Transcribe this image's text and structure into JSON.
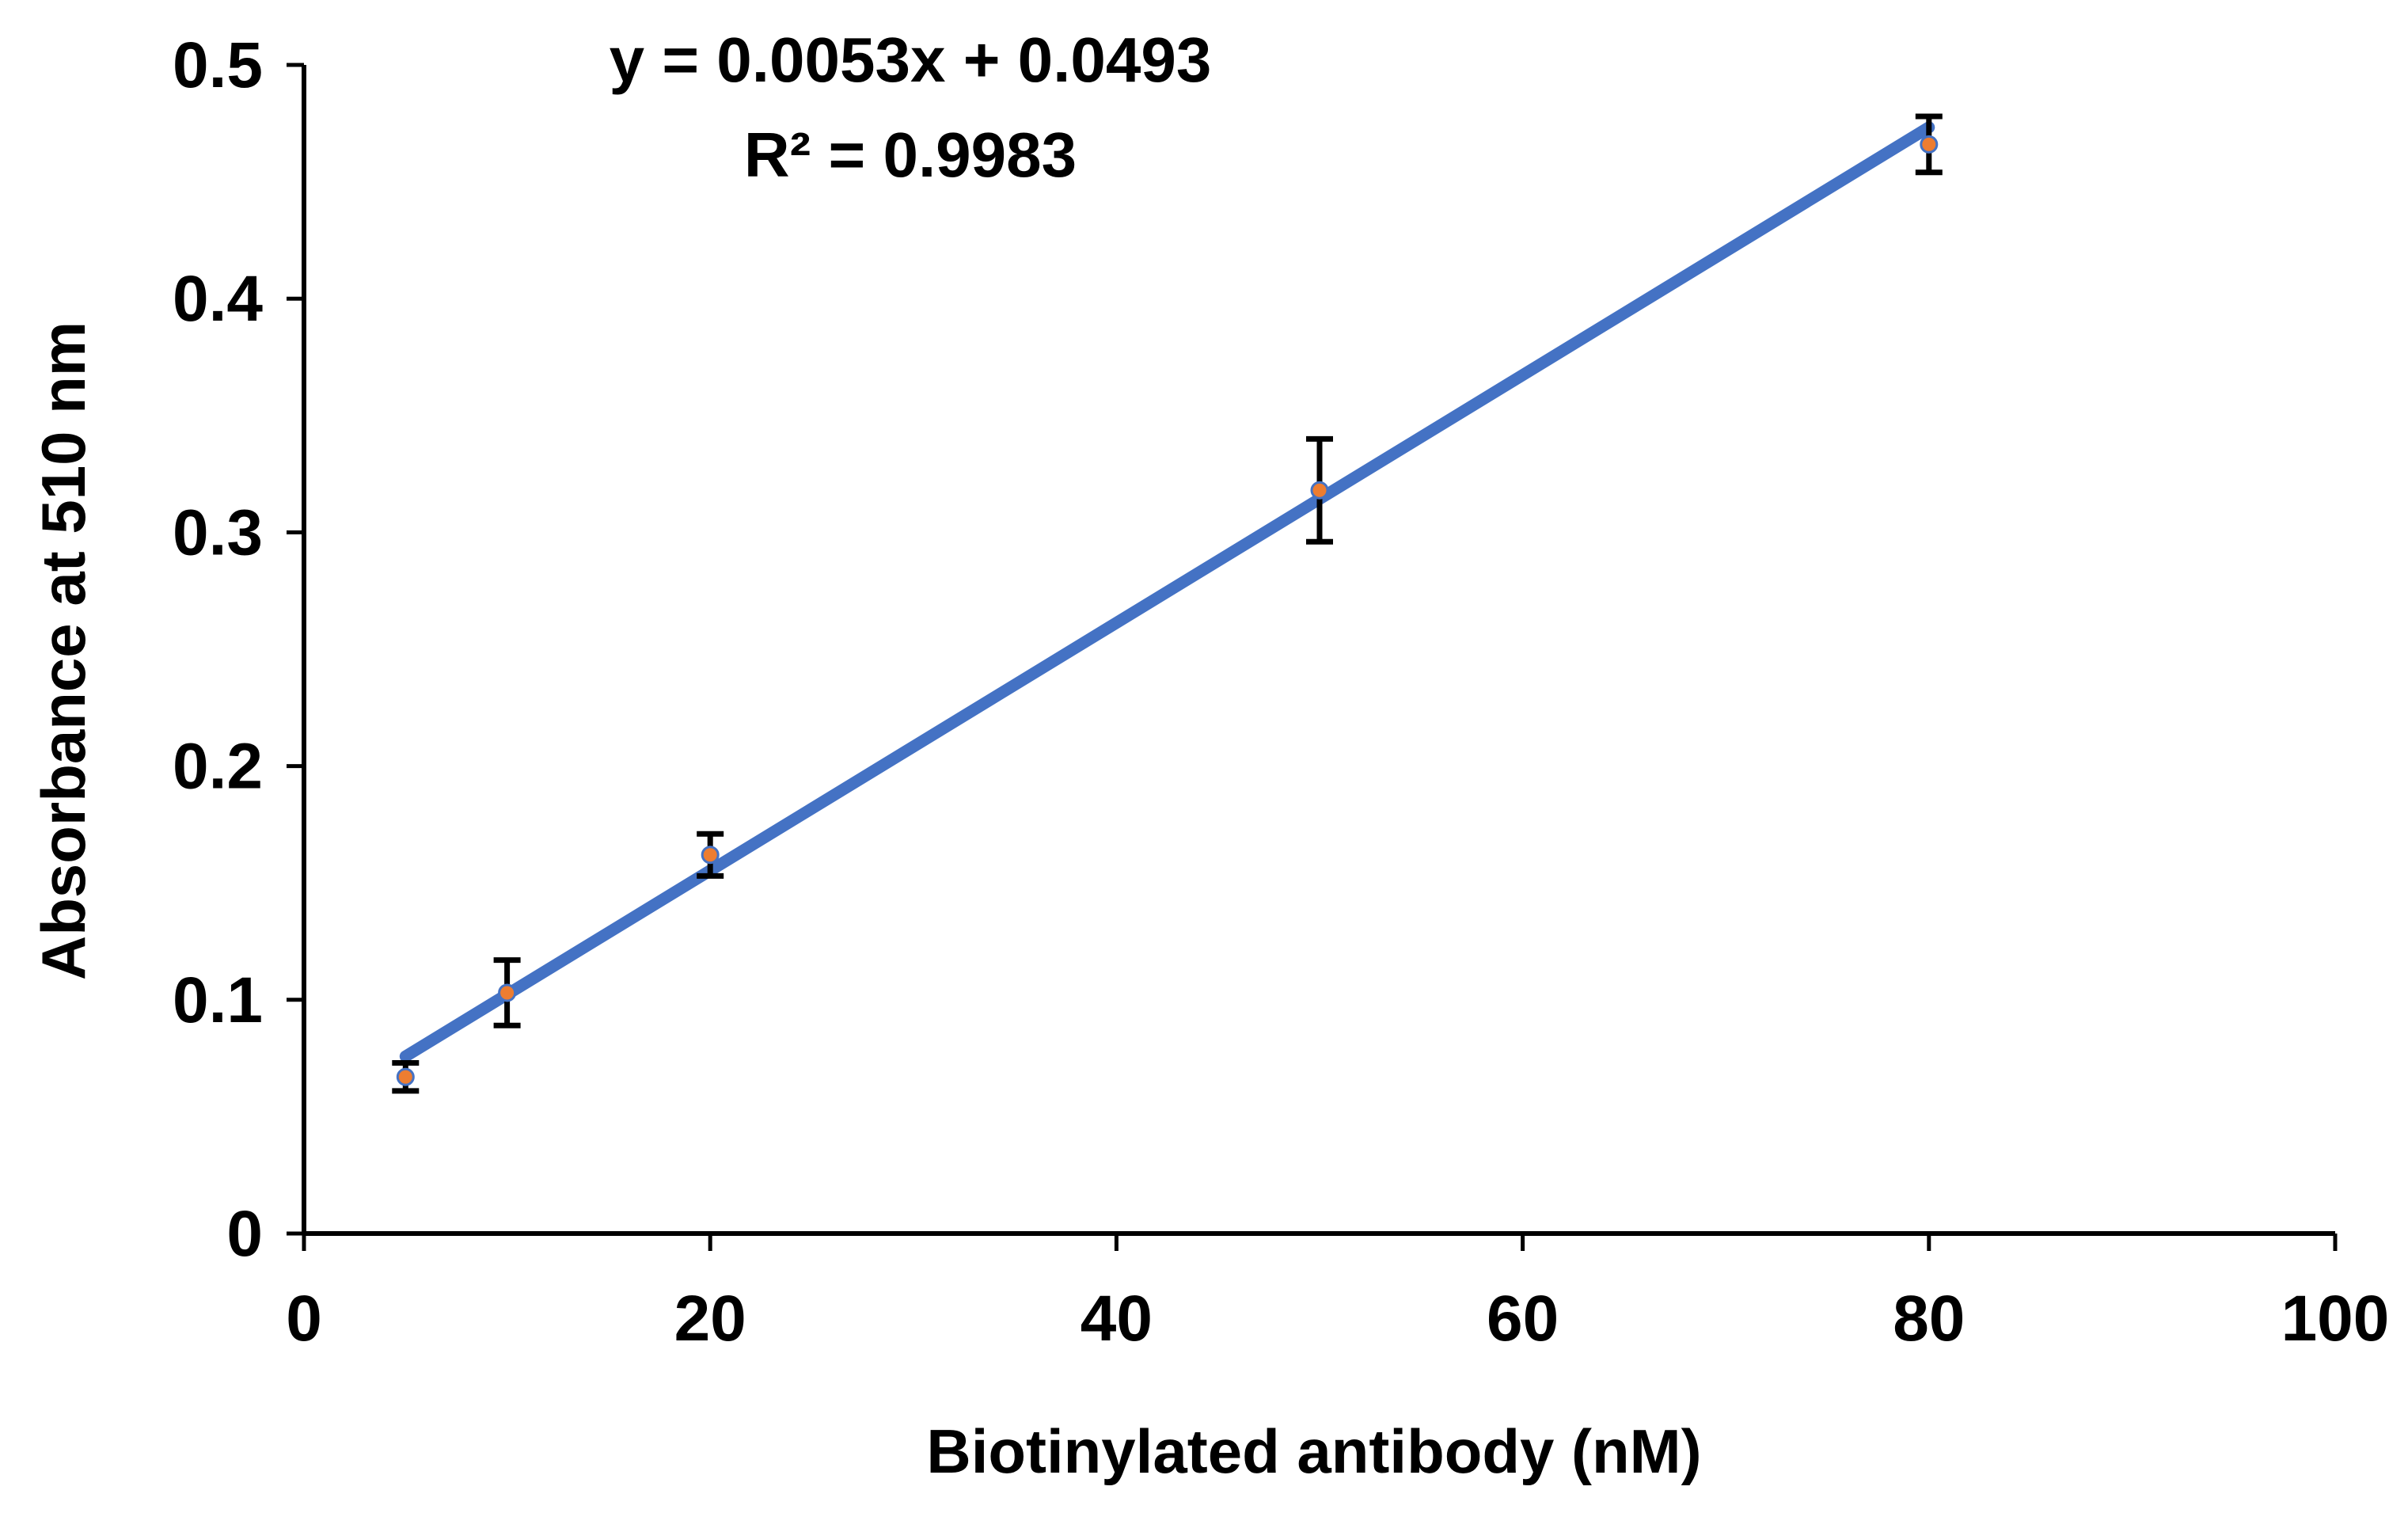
{
  "chart_data": {
    "type": "scatter",
    "title": "",
    "xlabel": "Biotinylated antibody  (nM)",
    "ylabel": "Absorbance  at 510 nm",
    "xlim": [
      0,
      100
    ],
    "ylim": [
      0,
      0.5
    ],
    "x_ticks": [
      0,
      20,
      40,
      60,
      80,
      100
    ],
    "y_ticks": [
      0,
      0.1,
      0.2,
      0.3,
      0.4,
      0.5
    ],
    "x_tick_labels": [
      "0",
      "20",
      "40",
      "60",
      "80",
      "100"
    ],
    "y_tick_labels": [
      "0",
      "0.1",
      "0.2",
      "0.3",
      "0.4",
      "0.5"
    ],
    "grid": false,
    "series": [
      {
        "name": "Absorbance",
        "x": [
          5,
          10,
          20,
          50,
          80
        ],
        "y": [
          0.067,
          0.103,
          0.162,
          0.318,
          0.466
        ],
        "error": [
          0.006,
          0.014,
          0.009,
          0.022,
          0.012
        ],
        "marker_color": "#ED7D31"
      }
    ],
    "trendline": {
      "type": "linear",
      "slope": 0.0053,
      "intercept": 0.0493,
      "x_range": [
        5,
        80
      ],
      "color": "#4472C4",
      "equation_label": "y = 0.0053x + 0.0493",
      "r2_label": "R² = 0.9983"
    }
  }
}
